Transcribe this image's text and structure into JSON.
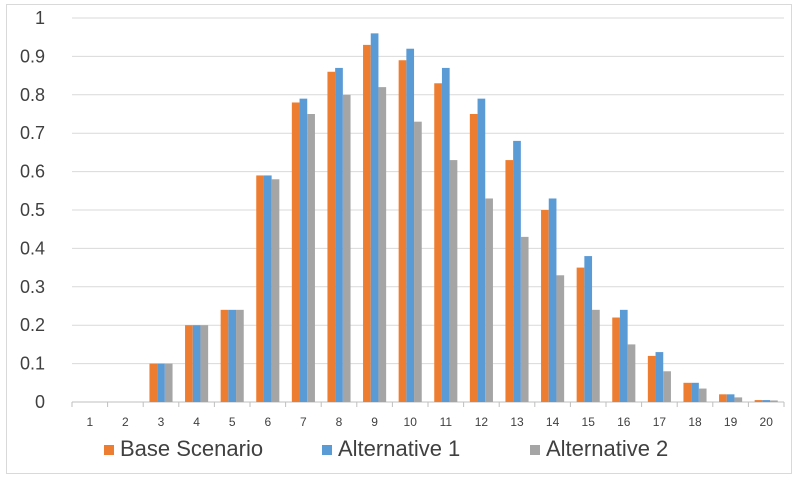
{
  "chart_data": {
    "type": "bar",
    "title": "",
    "xlabel": "",
    "ylabel": "",
    "ylim": [
      0,
      1
    ],
    "yticks": [
      "0",
      "0.1",
      "0.2",
      "0.3",
      "0.4",
      "0.5",
      "0.6",
      "0.7",
      "0.8",
      "0.9",
      "1"
    ],
    "categories": [
      "1",
      "2",
      "3",
      "4",
      "5",
      "6",
      "7",
      "8",
      "9",
      "10",
      "11",
      "12",
      "13",
      "14",
      "15",
      "16",
      "17",
      "18",
      "19",
      "20"
    ],
    "grid": "horizontal",
    "legend_position": "bottom",
    "series": [
      {
        "name": "Base Scenario",
        "color": "#ED7D31",
        "values": [
          0,
          0,
          0.1,
          0.2,
          0.24,
          0.59,
          0.78,
          0.86,
          0.93,
          0.89,
          0.83,
          0.75,
          0.63,
          0.5,
          0.35,
          0.22,
          0.12,
          0.05,
          0.02,
          0.005
        ]
      },
      {
        "name": "Alternative 1",
        "color": "#5B9BD5",
        "values": [
          0,
          0,
          0.1,
          0.2,
          0.24,
          0.59,
          0.79,
          0.87,
          0.96,
          0.92,
          0.87,
          0.79,
          0.68,
          0.53,
          0.38,
          0.24,
          0.13,
          0.05,
          0.02,
          0.005
        ]
      },
      {
        "name": "Alternative 2",
        "color": "#A5A5A5",
        "values": [
          0,
          0,
          0.1,
          0.2,
          0.24,
          0.58,
          0.75,
          0.8,
          0.82,
          0.73,
          0.63,
          0.53,
          0.43,
          0.33,
          0.24,
          0.15,
          0.08,
          0.035,
          0.012,
          0.004
        ]
      }
    ]
  }
}
